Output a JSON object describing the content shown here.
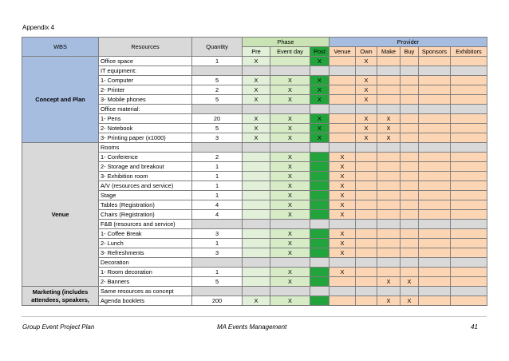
{
  "appendix": "Appendix 4",
  "header": {
    "wbs": "WBS",
    "resources": "Resources",
    "quantity": "Quantity",
    "phase": "Phase",
    "provider": "Provider",
    "pre": "Pre",
    "event_day": "Event day",
    "post": "Post",
    "venue": "Venue",
    "own": "Own",
    "make": "Make",
    "buy": "Buy",
    "sponsors": "Sponsors",
    "exhibitors": "Exhibitors"
  },
  "groups": {
    "concept": "Concept and Plan",
    "venue": "Venue",
    "marketing": "Marketing (includes attendees, speakers,"
  },
  "rows": [
    {
      "res": "Office space",
      "qty": "1",
      "pre": "X",
      "event": "",
      "post": "X",
      "venue": "",
      "own": "X",
      "make": "",
      "buy": ""
    },
    {
      "res": "IT equipment:",
      "qty": "",
      "pre": "",
      "event": "",
      "post": "",
      "venue": "",
      "own": "",
      "make": "",
      "buy": "",
      "sep": true
    },
    {
      "res": "1- Computer",
      "qty": "5",
      "pre": "X",
      "event": "X",
      "post": "X",
      "venue": "",
      "own": "X",
      "make": "",
      "buy": ""
    },
    {
      "res": "2- Printer",
      "qty": "2",
      "pre": "X",
      "event": "X",
      "post": "X",
      "venue": "",
      "own": "X",
      "make": "",
      "buy": ""
    },
    {
      "res": "3- Mobile phones",
      "qty": "5",
      "pre": "X",
      "event": "X",
      "post": "X",
      "venue": "",
      "own": "X",
      "make": "",
      "buy": ""
    },
    {
      "res": "Office material:",
      "qty": "",
      "pre": "",
      "event": "",
      "post": "",
      "venue": "",
      "own": "",
      "make": "",
      "buy": "",
      "sep": true
    },
    {
      "res": "1- Pens",
      "qty": "20",
      "pre": "X",
      "event": "X",
      "post": "X",
      "venue": "",
      "own": "X",
      "make": "X",
      "buy": ""
    },
    {
      "res": "2- Notebook",
      "qty": "5",
      "pre": "X",
      "event": "X",
      "post": "X",
      "venue": "",
      "own": "X",
      "make": "X",
      "buy": ""
    },
    {
      "res": "3- Printing paper (x1000)",
      "qty": "3",
      "pre": "X",
      "event": "X",
      "post": "X",
      "venue": "",
      "own": "X",
      "make": "X",
      "buy": ""
    },
    {
      "res": "Rooms",
      "qty": "",
      "pre": "",
      "event": "",
      "post": "",
      "venue": "",
      "own": "",
      "make": "",
      "buy": "",
      "sep": true
    },
    {
      "res": "1- Conference",
      "qty": "2",
      "pre": "",
      "event": "X",
      "post": "",
      "venue": "X",
      "own": "",
      "make": "",
      "buy": ""
    },
    {
      "res": "2- Storage and breakout",
      "qty": "1",
      "pre": "",
      "event": "X",
      "post": "",
      "venue": "X",
      "own": "",
      "make": "",
      "buy": ""
    },
    {
      "res": "3- Exhibition room",
      "qty": "1",
      "pre": "",
      "event": "X",
      "post": "",
      "venue": "X",
      "own": "",
      "make": "",
      "buy": ""
    },
    {
      "res": "A/V (resources and service)",
      "qty": "1",
      "pre": "",
      "event": "X",
      "post": "",
      "venue": "X",
      "own": "",
      "make": "",
      "buy": ""
    },
    {
      "res": "Stage",
      "qty": "1",
      "pre": "",
      "event": "X",
      "post": "",
      "venue": "X",
      "own": "",
      "make": "",
      "buy": ""
    },
    {
      "res": "Tables (Registration)",
      "qty": "4",
      "pre": "",
      "event": "X",
      "post": "",
      "venue": "X",
      "own": "",
      "make": "",
      "buy": ""
    },
    {
      "res": "Chairs (Registration)",
      "qty": "4",
      "pre": "",
      "event": "X",
      "post": "",
      "venue": "X",
      "own": "",
      "make": "",
      "buy": ""
    },
    {
      "res": "F&B (resources and service)",
      "qty": "",
      "pre": "",
      "event": "",
      "post": "",
      "venue": "",
      "own": "",
      "make": "",
      "buy": "",
      "sep": true
    },
    {
      "res": "1- Coffee Break",
      "qty": "3",
      "pre": "",
      "event": "X",
      "post": "",
      "venue": "X",
      "own": "",
      "make": "",
      "buy": ""
    },
    {
      "res": "2- Lunch",
      "qty": "1",
      "pre": "",
      "event": "X",
      "post": "",
      "venue": "X",
      "own": "",
      "make": "",
      "buy": ""
    },
    {
      "res": "3- Refreshments",
      "qty": "3",
      "pre": "",
      "event": "X",
      "post": "",
      "venue": "X",
      "own": "",
      "make": "",
      "buy": ""
    },
    {
      "res": "Decoration",
      "qty": "",
      "pre": "",
      "event": "",
      "post": "",
      "venue": "",
      "own": "",
      "make": "",
      "buy": "",
      "sep": true
    },
    {
      "res": "1- Room decoration",
      "qty": "1",
      "pre": "",
      "event": "X",
      "post": "",
      "venue": "X",
      "own": "",
      "make": "",
      "buy": ""
    },
    {
      "res": "2- Banners",
      "qty": "5",
      "pre": "",
      "event": "X",
      "post": "",
      "venue": "",
      "own": "",
      "make": "X",
      "buy": "X"
    },
    {
      "res": "Same resources as concept",
      "qty": "",
      "pre": "",
      "event": "",
      "post": "",
      "venue": "",
      "own": "",
      "make": "",
      "buy": "",
      "sep": true
    },
    {
      "res": "Agenda booklets",
      "qty": "200",
      "pre": "X",
      "event": "X",
      "post": "",
      "venue": "",
      "own": "",
      "make": "X",
      "buy": "X"
    }
  ],
  "footer": {
    "left": "Group Event Project Plan",
    "center": "MA Events Management",
    "page": "41"
  }
}
